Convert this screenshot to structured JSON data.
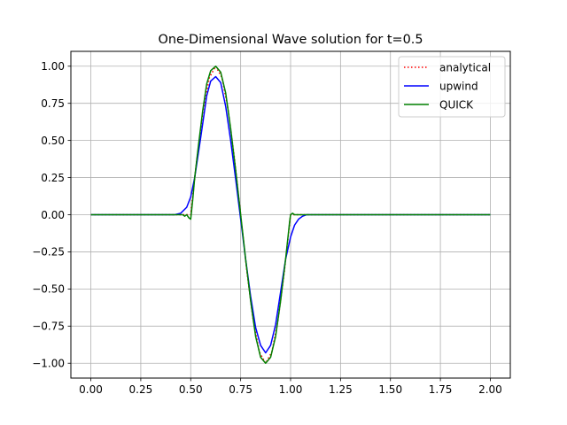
{
  "chart_data": {
    "type": "line",
    "title": "One-Dimensional Wave solution for t=0.5",
    "xlabel": "",
    "ylabel": "",
    "xlim": [
      -0.1,
      2.1
    ],
    "ylim": [
      -1.1,
      1.1
    ],
    "grid": true,
    "legend_position": "top-right",
    "x_ticks": [
      "0.00",
      "0.25",
      "0.50",
      "0.75",
      "1.00",
      "1.25",
      "1.50",
      "1.75",
      "2.00"
    ],
    "y_ticks": [
      "1.00",
      "0.75",
      "0.50",
      "0.25",
      "0.00",
      "−0.25",
      "−0.50",
      "−0.75",
      "−1.00"
    ],
    "series": [
      {
        "name": "analytical",
        "color": "#ff0000",
        "style": "dotted",
        "x": [
          0.0,
          0.5,
          0.5313,
          0.5625,
          0.5938,
          0.625,
          0.6563,
          0.6875,
          0.7188,
          0.75,
          0.7813,
          0.8125,
          0.8438,
          0.875,
          0.9063,
          0.9375,
          0.9688,
          1.0,
          2.0
        ],
        "y": [
          0.0,
          0.0,
          0.383,
          0.707,
          0.924,
          1.0,
          0.924,
          0.707,
          0.383,
          0.0,
          -0.383,
          -0.707,
          -0.924,
          -1.0,
          -0.924,
          -0.707,
          -0.383,
          0.0,
          0.0
        ]
      },
      {
        "name": "upwind",
        "color": "#0000ff",
        "style": "solid",
        "x": [
          0.0,
          0.42,
          0.45,
          0.48,
          0.5,
          0.52,
          0.55,
          0.58,
          0.6,
          0.625,
          0.65,
          0.675,
          0.7,
          0.725,
          0.75,
          0.775,
          0.8,
          0.825,
          0.85,
          0.875,
          0.9,
          0.925,
          0.95,
          0.975,
          1.0,
          1.02,
          1.04,
          1.06,
          1.08,
          1.1,
          2.0
        ],
        "y": [
          0.0,
          0.0,
          0.01,
          0.05,
          0.12,
          0.25,
          0.52,
          0.8,
          0.9,
          0.93,
          0.89,
          0.73,
          0.5,
          0.24,
          -0.03,
          -0.3,
          -0.55,
          -0.76,
          -0.88,
          -0.93,
          -0.88,
          -0.74,
          -0.52,
          -0.3,
          -0.15,
          -0.07,
          -0.03,
          -0.01,
          0.0,
          0.0,
          0.0
        ]
      },
      {
        "name": "QUICK",
        "color": "#008000",
        "style": "solid",
        "x": [
          0.0,
          0.44,
          0.46,
          0.47,
          0.48,
          0.49,
          0.5,
          0.51,
          0.52,
          0.54,
          0.56,
          0.58,
          0.6,
          0.625,
          0.65,
          0.675,
          0.7,
          0.725,
          0.75,
          0.775,
          0.8,
          0.825,
          0.85,
          0.875,
          0.9,
          0.925,
          0.95,
          0.975,
          0.995,
          1.0,
          1.01,
          1.02,
          1.05,
          1.1,
          2.0
        ],
        "y": [
          0.0,
          0.0,
          0.0,
          -0.01,
          0.0,
          -0.02,
          -0.03,
          0.1,
          0.25,
          0.48,
          0.7,
          0.88,
          0.97,
          1.0,
          0.96,
          0.82,
          0.58,
          0.3,
          0.0,
          -0.3,
          -0.58,
          -0.82,
          -0.96,
          -1.0,
          -0.96,
          -0.82,
          -0.58,
          -0.3,
          -0.05,
          0.0,
          0.01,
          0.0,
          0.0,
          0.0,
          0.0
        ]
      }
    ]
  }
}
